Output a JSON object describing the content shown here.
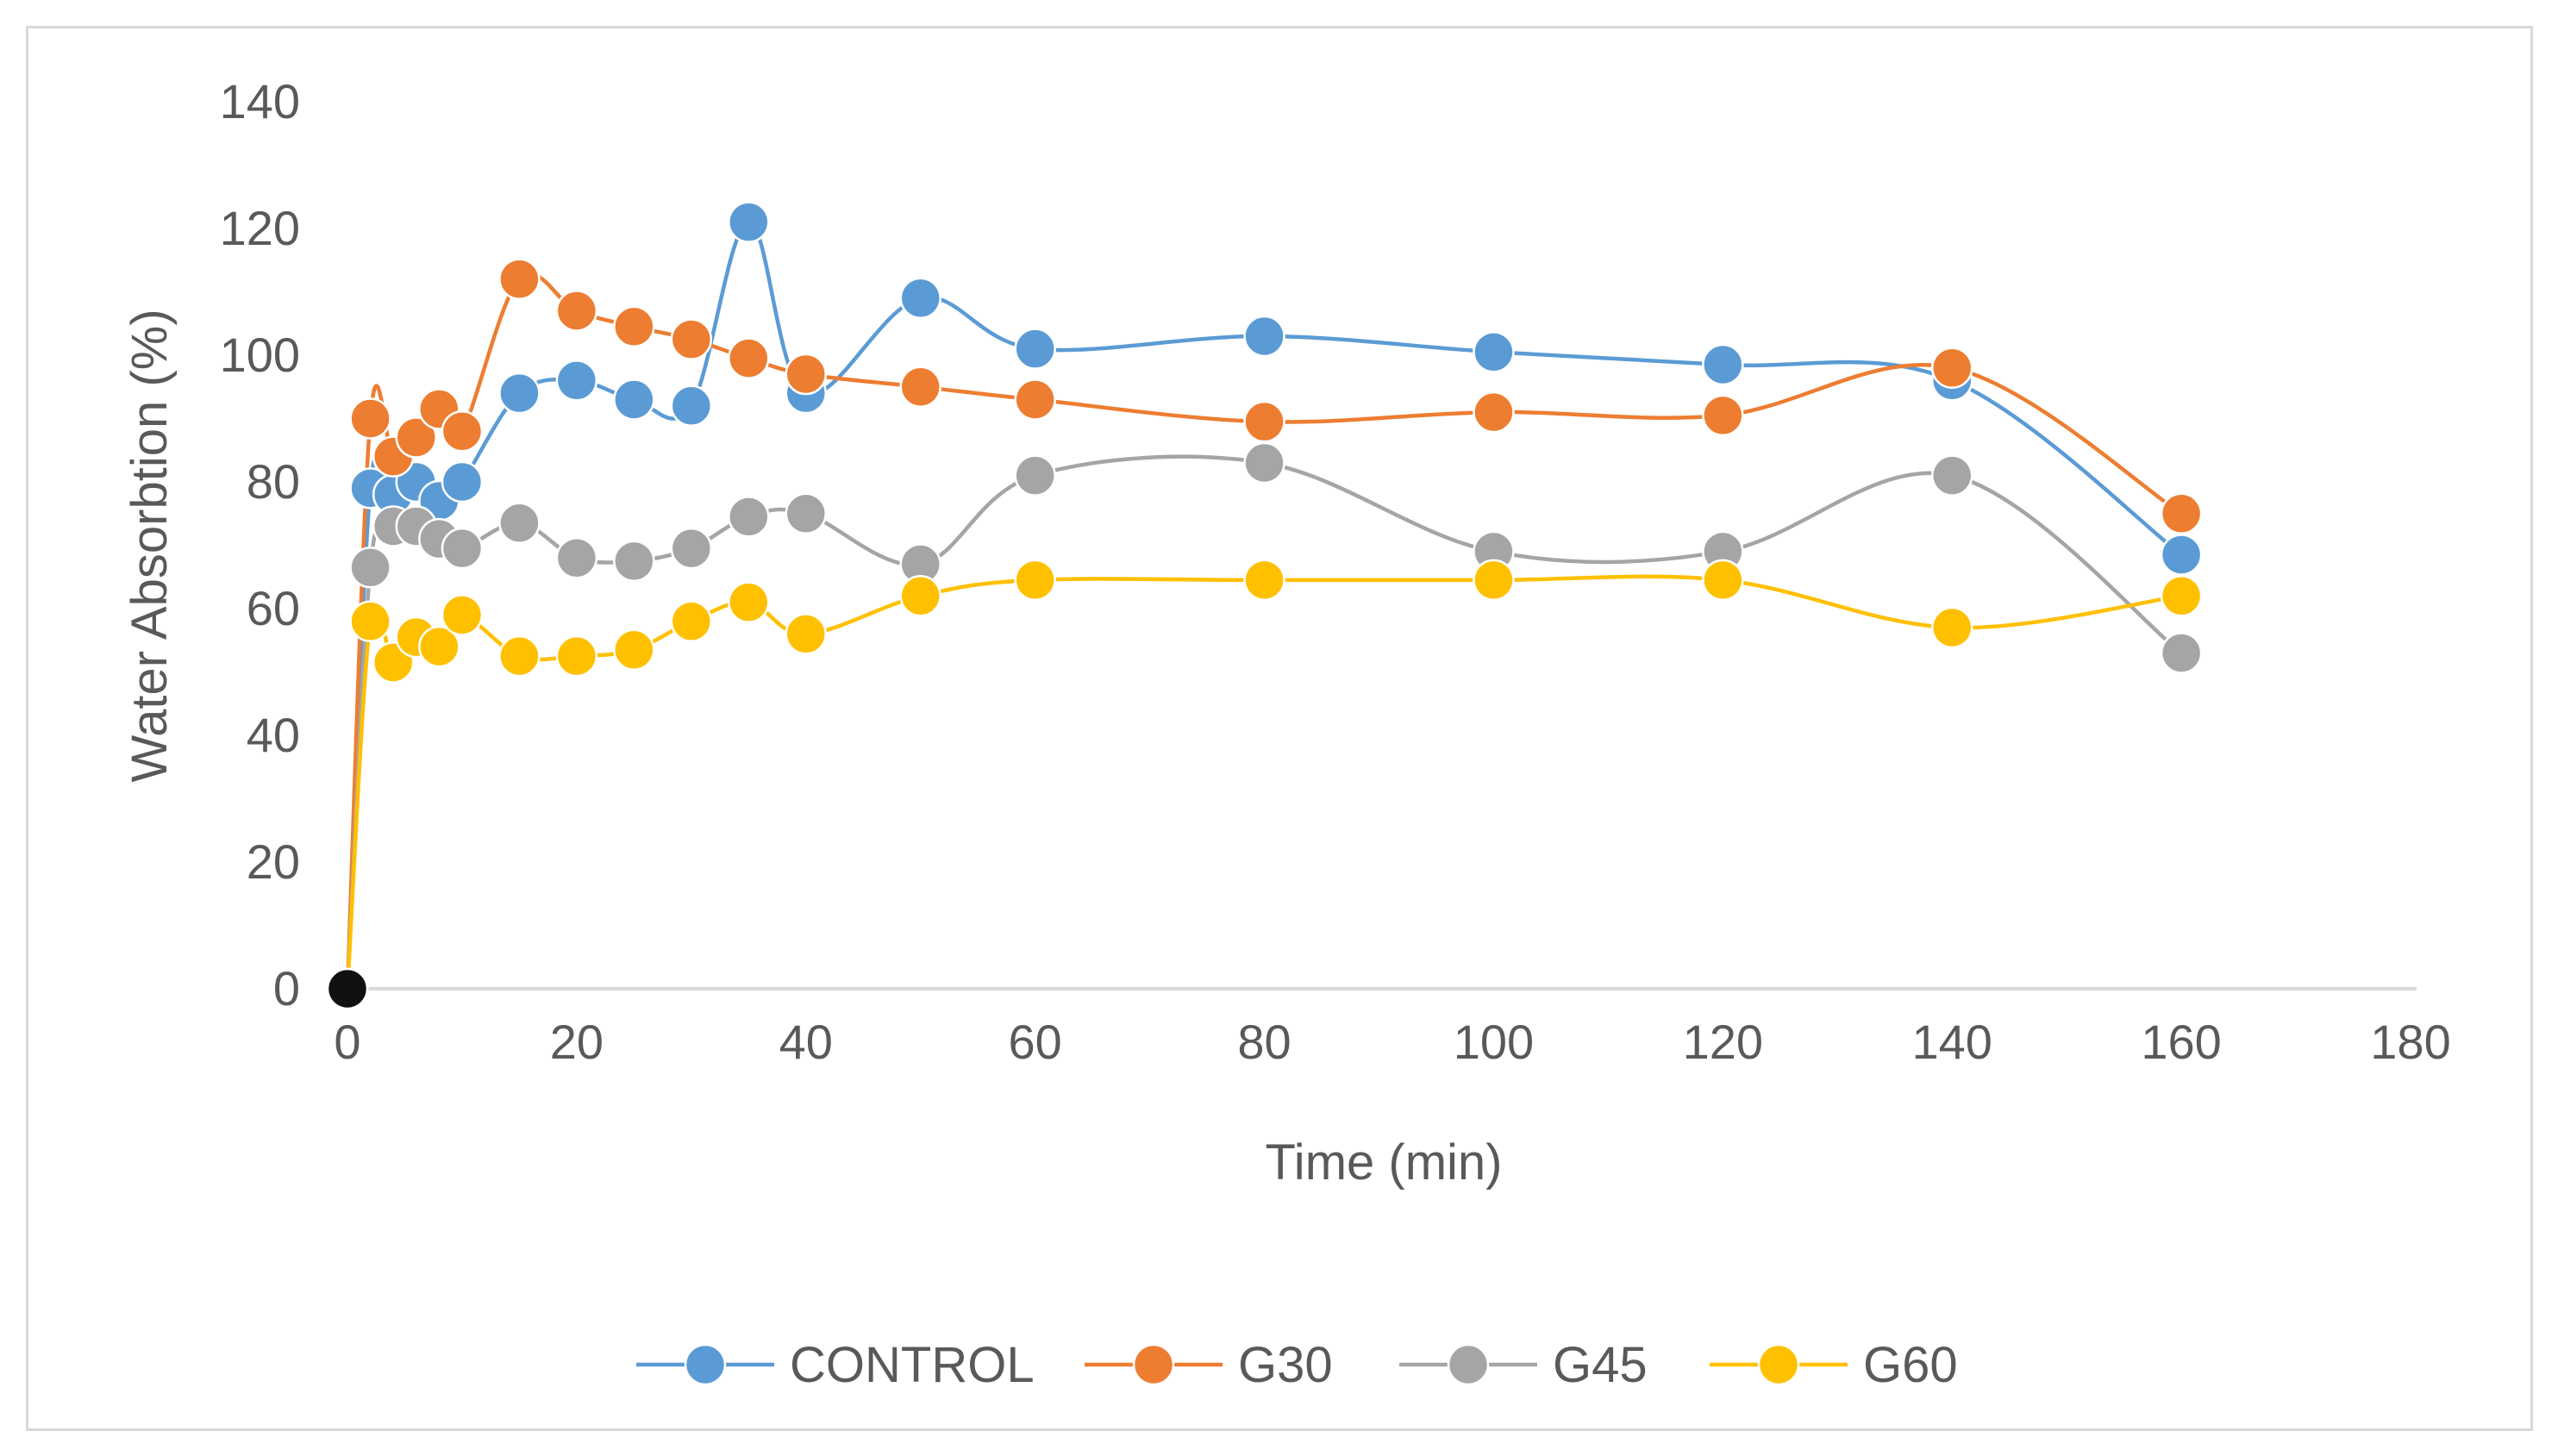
{
  "chart_data": {
    "type": "line",
    "title": "",
    "xlabel": "Time (min)",
    "ylabel": "Water Absorbtion (%)",
    "xlim": [
      0,
      180
    ],
    "ylim": [
      0,
      140
    ],
    "xticks": [
      "0",
      "20",
      "40",
      "60",
      "80",
      "100",
      "120",
      "140",
      "160",
      "180"
    ],
    "yticks": [
      "0",
      "20",
      "40",
      "60",
      "80",
      "100",
      "120",
      "140"
    ],
    "grid": false,
    "legend_position": "bottom",
    "smoothed": true,
    "series": [
      {
        "name": "CONTROL",
        "color": "#5B9BD5",
        "x": [
          0,
          2,
          4,
          6,
          8,
          10,
          15,
          20,
          25,
          30,
          35,
          40,
          50,
          60,
          80,
          100,
          120,
          140,
          160
        ],
        "y": [
          0,
          79,
          78,
          80,
          77,
          80,
          94,
          96,
          93,
          92,
          121,
          94,
          109,
          101,
          103,
          100.5,
          98.5,
          96,
          68.5
        ]
      },
      {
        "name": "G30",
        "color": "#ED7D31",
        "x": [
          0,
          2,
          4,
          6,
          8,
          10,
          15,
          20,
          25,
          30,
          35,
          40,
          50,
          60,
          80,
          100,
          120,
          140,
          160
        ],
        "y": [
          0,
          90,
          84,
          87,
          91.5,
          88,
          112,
          107,
          104.5,
          102.5,
          99.5,
          97,
          95,
          93,
          89.5,
          91,
          90.5,
          98,
          75
        ]
      },
      {
        "name": "G45",
        "color": "#A5A5A5",
        "x": [
          0,
          2,
          4,
          6,
          8,
          10,
          15,
          20,
          25,
          30,
          35,
          40,
          50,
          60,
          80,
          100,
          120,
          140,
          160
        ],
        "y": [
          0,
          66.5,
          73,
          73,
          71,
          69.5,
          73.5,
          68,
          67.5,
          69.5,
          74.5,
          75,
          67,
          81,
          83,
          69,
          69,
          81,
          53
        ]
      },
      {
        "name": "G60",
        "color": "#FFC000",
        "x": [
          0,
          2,
          4,
          6,
          8,
          10,
          15,
          20,
          25,
          30,
          35,
          40,
          50,
          60,
          80,
          100,
          120,
          140,
          160
        ],
        "y": [
          0,
          58,
          51.5,
          55.5,
          54,
          59,
          52.5,
          52.5,
          53.5,
          58,
          61,
          56,
          62,
          64.5,
          64.5,
          64.5,
          64.5,
          57,
          62
        ]
      }
    ]
  }
}
